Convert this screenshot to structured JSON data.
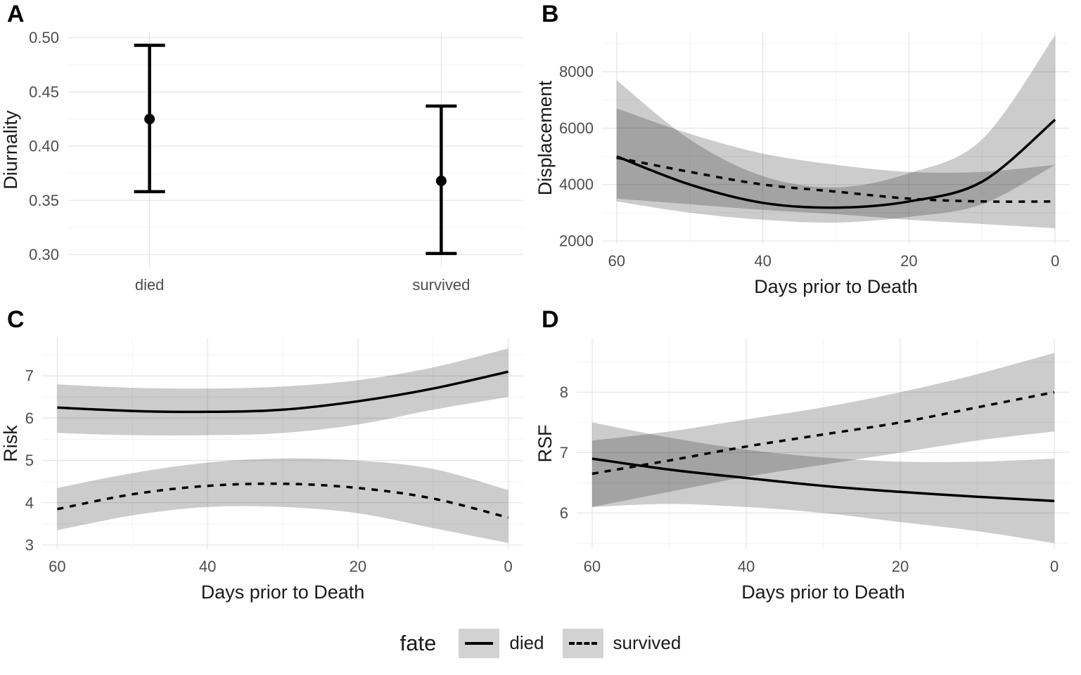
{
  "figure": {
    "background": "#ffffff",
    "panel_labels": [
      "A",
      "B",
      "C",
      "D"
    ]
  },
  "legend": {
    "title": "fate",
    "entries": [
      {
        "label": "died",
        "linestyle": "solid"
      },
      {
        "label": "survived",
        "linestyle": "dashed"
      }
    ],
    "key_fill": "#d2d2d2",
    "line_color": "#000000"
  },
  "colors": {
    "line": "#000000",
    "ribbon": "#000000",
    "ribbon_opacity": 0.2,
    "grid_major": "#e6e6e6",
    "grid_minor": "#f2f2f2",
    "tick_text": "#4d4d4d",
    "axis_title": "#1a1a1a"
  },
  "chart_data": [
    {
      "panel": "A",
      "type": "pointrange",
      "title": "",
      "ylabel": "Diurnality",
      "xlabel": "",
      "categories": [
        "died",
        "survived"
      ],
      "points": [
        {
          "category": "died",
          "estimate": 0.425,
          "lower": 0.358,
          "upper": 0.493
        },
        {
          "category": "survived",
          "estimate": 0.368,
          "lower": 0.301,
          "upper": 0.437
        }
      ],
      "ylim": [
        0.288,
        0.505
      ],
      "yticks": [
        0.3,
        0.35,
        0.4,
        0.45,
        0.5
      ],
      "ytick_labels": [
        "0.30",
        "0.35",
        "0.40",
        "0.45",
        "0.50"
      ],
      "grid": true
    },
    {
      "panel": "B",
      "type": "line",
      "title": "",
      "ylabel": "Displacement",
      "xlabel": "Days prior to Death",
      "x": [
        60,
        50,
        40,
        30,
        20,
        10,
        0
      ],
      "xlim": [
        62,
        -2
      ],
      "x_axis_reversed": true,
      "xticks": [
        60,
        40,
        20,
        0
      ],
      "xtick_labels": [
        "60",
        "40",
        "20",
        "0"
      ],
      "ylim": [
        1900,
        9400
      ],
      "yticks": [
        2000,
        4000,
        6000,
        8000
      ],
      "ytick_labels": [
        "2000",
        "4000",
        "6000",
        "8000"
      ],
      "grid": true,
      "series": [
        {
          "name": "died",
          "linestyle": "solid",
          "values": [
            5000,
            4000,
            3350,
            3180,
            3400,
            4100,
            6300
          ],
          "lower": [
            3400,
            3000,
            2750,
            2650,
            2850,
            3300,
            4700
          ],
          "upper": [
            7700,
            5600,
            4300,
            3900,
            4400,
            5600,
            9300
          ]
        },
        {
          "name": "survived",
          "linestyle": "dashed",
          "values": [
            4950,
            4450,
            4000,
            3750,
            3500,
            3400,
            3400
          ],
          "lower": [
            3500,
            3300,
            3100,
            2950,
            2750,
            2600,
            2450
          ],
          "upper": [
            6700,
            5800,
            5100,
            4700,
            4450,
            4450,
            4700
          ]
        }
      ]
    },
    {
      "panel": "C",
      "type": "line",
      "title": "",
      "ylabel": "Risk",
      "xlabel": "Days prior to Death",
      "x": [
        60,
        50,
        40,
        30,
        20,
        10,
        0
      ],
      "xlim": [
        62,
        -2
      ],
      "x_axis_reversed": true,
      "xticks": [
        60,
        40,
        20,
        0
      ],
      "xtick_labels": [
        "60",
        "40",
        "20",
        "0"
      ],
      "ylim": [
        2.9,
        7.9
      ],
      "yticks": [
        3,
        4,
        5,
        6,
        7
      ],
      "ytick_labels": [
        "3",
        "4",
        "5",
        "6",
        "7"
      ],
      "grid": true,
      "series": [
        {
          "name": "died",
          "linestyle": "solid",
          "values": [
            6.25,
            6.17,
            6.15,
            6.2,
            6.4,
            6.7,
            7.1
          ],
          "lower": [
            5.65,
            5.6,
            5.6,
            5.65,
            5.85,
            6.2,
            6.5
          ],
          "upper": [
            6.8,
            6.72,
            6.7,
            6.75,
            6.9,
            7.2,
            7.65
          ]
        },
        {
          "name": "survived",
          "linestyle": "dashed",
          "values": [
            3.85,
            4.2,
            4.4,
            4.45,
            4.35,
            4.1,
            3.65
          ],
          "lower": [
            3.35,
            3.7,
            3.9,
            3.9,
            3.75,
            3.4,
            3.05
          ],
          "upper": [
            4.35,
            4.7,
            4.95,
            5.05,
            5.0,
            4.8,
            4.3
          ]
        }
      ]
    },
    {
      "panel": "D",
      "type": "line",
      "title": "",
      "ylabel": "RSF",
      "xlabel": "Days prior to Death",
      "x": [
        60,
        50,
        40,
        30,
        20,
        10,
        0
      ],
      "xlim": [
        62,
        -2
      ],
      "x_axis_reversed": true,
      "xticks": [
        60,
        40,
        20,
        0
      ],
      "xtick_labels": [
        "60",
        "40",
        "20",
        "0"
      ],
      "ylim": [
        5.4,
        8.9
      ],
      "yticks": [
        6,
        7,
        8
      ],
      "ytick_labels": [
        "6",
        "7",
        "8"
      ],
      "grid": true,
      "series": [
        {
          "name": "died",
          "linestyle": "solid",
          "values": [
            6.9,
            6.72,
            6.58,
            6.45,
            6.35,
            6.27,
            6.2
          ],
          "lower": [
            6.1,
            6.15,
            6.1,
            6.0,
            5.85,
            5.7,
            5.5
          ],
          "upper": [
            7.5,
            7.25,
            7.05,
            6.92,
            6.85,
            6.85,
            6.9
          ]
        },
        {
          "name": "survived",
          "linestyle": "dashed",
          "values": [
            6.65,
            6.87,
            7.1,
            7.3,
            7.5,
            7.75,
            8.0
          ],
          "lower": [
            6.1,
            6.35,
            6.6,
            6.8,
            7.0,
            7.2,
            7.35
          ],
          "upper": [
            7.2,
            7.35,
            7.55,
            7.75,
            8.0,
            8.3,
            8.65
          ]
        }
      ]
    }
  ]
}
